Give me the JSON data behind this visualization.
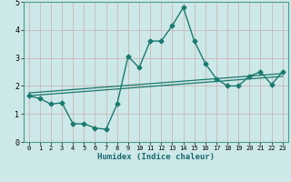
{
  "xlabel": "Humidex (Indice chaleur)",
  "x": [
    0,
    1,
    2,
    3,
    4,
    5,
    6,
    7,
    8,
    9,
    10,
    11,
    12,
    13,
    14,
    15,
    16,
    17,
    18,
    19,
    20,
    21,
    22,
    23
  ],
  "y": [
    1.65,
    1.55,
    1.35,
    1.4,
    0.65,
    0.65,
    0.5,
    0.45,
    1.35,
    3.05,
    2.65,
    3.6,
    3.6,
    4.15,
    4.8,
    3.6,
    2.8,
    2.25,
    2.0,
    2.0,
    2.35,
    2.5,
    2.05,
    2.5
  ],
  "trend_lower": [
    1.65,
    1.68,
    1.71,
    1.74,
    1.77,
    1.8,
    1.83,
    1.86,
    1.89,
    1.92,
    1.95,
    1.98,
    2.01,
    2.04,
    2.07,
    2.1,
    2.13,
    2.16,
    2.19,
    2.22,
    2.25,
    2.28,
    2.31,
    2.34
  ],
  "trend_upper": [
    1.75,
    1.78,
    1.81,
    1.84,
    1.87,
    1.9,
    1.93,
    1.96,
    1.99,
    2.02,
    2.05,
    2.08,
    2.11,
    2.14,
    2.17,
    2.2,
    2.23,
    2.26,
    2.29,
    2.32,
    2.35,
    2.38,
    2.41,
    2.44
  ],
  "bg_color": "#cde8e8",
  "line_color": "#1a7a6e",
  "trend_color": "#1a7a6e",
  "grid_color": "#b8d8d8",
  "spine_color": "#4a9a8e",
  "xlim": [
    -0.5,
    23.5
  ],
  "ylim": [
    0,
    5
  ],
  "yticks": [
    0,
    1,
    2,
    3,
    4,
    5
  ],
  "xticks": [
    0,
    1,
    2,
    3,
    4,
    5,
    6,
    7,
    8,
    9,
    10,
    11,
    12,
    13,
    14,
    15,
    16,
    17,
    18,
    19,
    20,
    21,
    22,
    23
  ],
  "marker": "D",
  "markersize": 2.5,
  "linewidth": 1.0
}
